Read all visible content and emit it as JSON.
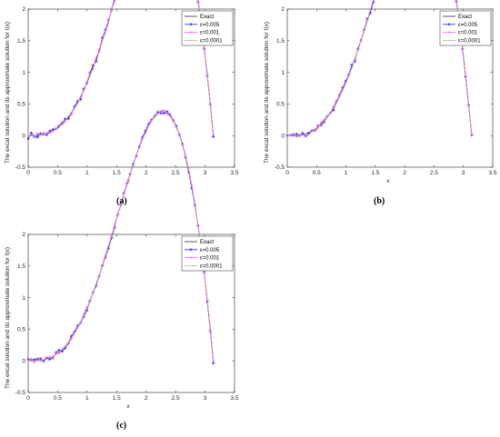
{
  "captions": [
    "(a)",
    "(b)",
    "(c)"
  ],
  "chart_data": [
    {
      "type": "line",
      "panel": "(a)",
      "xlabel": "x",
      "ylabel": "The excat solution and its approximate solution for f(x)",
      "xlim": [
        0,
        3.5
      ],
      "ylim": [
        -0.5,
        2
      ],
      "xticks": [
        "0",
        "0.5",
        "1",
        "1.5",
        "2",
        "2.5",
        "3",
        "3.5"
      ],
      "yticks": [
        "-0.5",
        "0",
        "0.5",
        "1",
        "1.5",
        "2"
      ],
      "legend_position": "top-right",
      "series": [
        {
          "name": "Exact",
          "color": "#2b2b2b",
          "marker": "none"
        },
        {
          "name": "ε=0.005",
          "color": "#1a1aff",
          "marker": "asterisk"
        },
        {
          "name": "ε=0.001",
          "color": "#e266e6",
          "marker": "plus"
        },
        {
          "name": "ε=0.0001",
          "color": "#e0a0a0",
          "marker": "none"
        }
      ],
      "noise": 0.05
    },
    {
      "type": "line",
      "panel": "(b)",
      "xlabel": "x",
      "ylabel": "The excat solution and its approximate solution for f(x)",
      "xlim": [
        0,
        3.5
      ],
      "ylim": [
        -0.5,
        2
      ],
      "xticks": [
        "0",
        "0.5",
        "1",
        "1.5",
        "2",
        "2.5",
        "3",
        "3.5"
      ],
      "yticks": [
        "-0.5",
        "0",
        "0.5",
        "1",
        "1.5",
        "2"
      ],
      "legend_position": "top-right",
      "series": [
        {
          "name": "Exact",
          "color": "#2b2b2b",
          "marker": "none"
        },
        {
          "name": "ε=0.005",
          "color": "#1a1aff",
          "marker": "asterisk"
        },
        {
          "name": "ε=0.001",
          "color": "#e266e6",
          "marker": "plus"
        },
        {
          "name": "ε=0.0001",
          "color": "#e0a0a0",
          "marker": "none"
        }
      ],
      "noise": 0.04
    },
    {
      "type": "line",
      "panel": "(c)",
      "xlabel": "x",
      "ylabel": "The excat solution and its approximate solution for f(x)",
      "xlim": [
        0,
        3.5
      ],
      "ylim": [
        -0.5,
        2
      ],
      "xticks": [
        "0",
        "0.5",
        "1",
        "1.5",
        "2",
        "2.5",
        "3",
        "3.5"
      ],
      "yticks": [
        "-0.5",
        "0",
        "0.5",
        "1",
        "1.5",
        "2"
      ],
      "legend_position": "top-right",
      "series": [
        {
          "name": "Exact",
          "color": "#2b2b2b",
          "marker": "none"
        },
        {
          "name": "ε=0.005",
          "color": "#1a1aff",
          "marker": "asterisk"
        },
        {
          "name": "ε=0.001",
          "color": "#e266e6",
          "marker": "plus"
        },
        {
          "name": "ε=0.0001",
          "color": "#e0a0a0",
          "marker": "none"
        }
      ],
      "noise": 0.035
    }
  ]
}
